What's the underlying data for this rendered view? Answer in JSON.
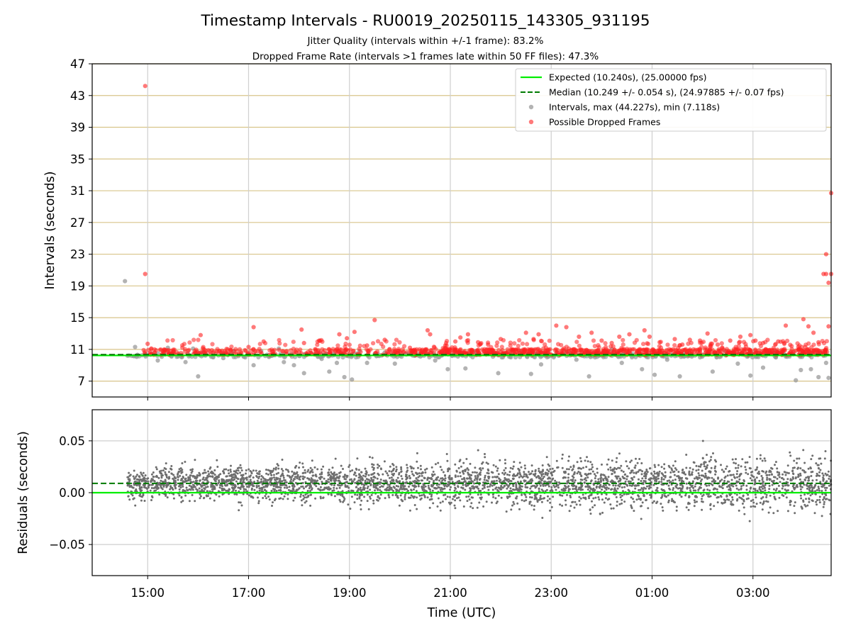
{
  "title": "Timestamp Intervals - RU0019_20250115_143305_931195",
  "subtitle_1": "Jitter Quality (intervals within +/-1 frame): 83.2%",
  "subtitle_2": "Dropped Frame Rate (intervals >1 frames late within 50 FF files): 47.3%",
  "colors": {
    "expected": "#00ee00",
    "median": "#007a00",
    "intervals": "#9a9a9a",
    "dropped": "#ff2020",
    "residuals": "#6e6e6e",
    "hgrid_top": "#d8c48a",
    "grid": "#cfcfcf"
  },
  "chart_data": [
    {
      "type": "scatter",
      "panel": "intervals",
      "ylabel": "Intervals (seconds)",
      "ylim": [
        5.0,
        47.0
      ],
      "yticks": [
        "7",
        "11",
        "15",
        "19",
        "23",
        "27",
        "31",
        "35",
        "39",
        "43",
        "47"
      ],
      "xlim_hours": [
        13.9,
        28.55
      ],
      "xticks": [
        "15:00",
        "17:00",
        "19:00",
        "21:00",
        "23:00",
        "01:00",
        "03:00"
      ],
      "legend_position": "top-right",
      "expected_value": 10.24,
      "median_value": 10.249,
      "series": [
        {
          "name": "Expected (10.240s), (25.00000 fps)",
          "kind": "line",
          "value": 10.24
        },
        {
          "name": "Median (10.249 +/- 0.054 s), (24.97885 +/- 0.07 fps)",
          "kind": "dashed-line",
          "value": 10.249
        },
        {
          "name": "Intervals, max (44.227s), min (7.118s)",
          "kind": "points",
          "max": 44.227,
          "min": 7.118,
          "points": [
            [
              14.55,
              19.6
            ],
            [
              14.6,
              10.2
            ],
            [
              14.75,
              11.3
            ],
            [
              14.8,
              10.3
            ],
            [
              15.0,
              10.3
            ],
            [
              15.2,
              9.6
            ],
            [
              15.4,
              11.2
            ],
            [
              15.6,
              10.1
            ],
            [
              15.75,
              9.4
            ],
            [
              15.9,
              11.1
            ],
            [
              16.0,
              7.6
            ],
            [
              16.1,
              10.6
            ],
            [
              16.3,
              10.0
            ],
            [
              16.5,
              9.9
            ],
            [
              16.7,
              10.8
            ],
            [
              16.9,
              10.1
            ],
            [
              17.1,
              9.0
            ],
            [
              17.25,
              10.8
            ],
            [
              17.4,
              10.1
            ],
            [
              17.6,
              11.1
            ],
            [
              17.7,
              9.4
            ],
            [
              17.9,
              9.0
            ],
            [
              18.1,
              8.0
            ],
            [
              18.25,
              10.4
            ],
            [
              18.45,
              9.8
            ],
            [
              18.6,
              8.2
            ],
            [
              18.75,
              9.3
            ],
            [
              18.9,
              7.5
            ],
            [
              19.05,
              7.2
            ],
            [
              19.2,
              10.8
            ],
            [
              19.35,
              9.3
            ],
            [
              19.5,
              10.4
            ],
            [
              19.7,
              10.6
            ],
            [
              19.9,
              9.2
            ],
            [
              20.1,
              10.4
            ],
            [
              20.3,
              10.2
            ],
            [
              20.5,
              10.8
            ],
            [
              20.7,
              9.6
            ],
            [
              20.95,
              8.5
            ],
            [
              21.15,
              10.1
            ],
            [
              21.3,
              8.6
            ],
            [
              21.5,
              10.8
            ],
            [
              21.75,
              10.4
            ],
            [
              21.95,
              8.0
            ],
            [
              22.2,
              10.0
            ],
            [
              22.4,
              10.8
            ],
            [
              22.6,
              7.9
            ],
            [
              22.8,
              9.1
            ],
            [
              23.05,
              10.0
            ],
            [
              23.3,
              10.8
            ],
            [
              23.5,
              9.7
            ],
            [
              23.75,
              7.6
            ],
            [
              23.95,
              10.2
            ],
            [
              24.2,
              11.0
            ],
            [
              24.4,
              9.3
            ],
            [
              24.6,
              10.0
            ],
            [
              24.8,
              8.5
            ],
            [
              25.05,
              7.8
            ],
            [
              25.3,
              9.7
            ],
            [
              25.55,
              7.6
            ],
            [
              25.75,
              10.3
            ],
            [
              25.95,
              10.0
            ],
            [
              26.2,
              8.2
            ],
            [
              26.45,
              10.8
            ],
            [
              26.7,
              9.2
            ],
            [
              26.95,
              7.7
            ],
            [
              27.2,
              8.7
            ],
            [
              27.45,
              10.8
            ],
            [
              27.65,
              10.1
            ],
            [
              27.85,
              7.1
            ],
            [
              27.95,
              8.4
            ],
            [
              28.15,
              8.5
            ],
            [
              28.3,
              7.5
            ],
            [
              28.45,
              9.3
            ],
            [
              28.5,
              7.4
            ]
          ]
        },
        {
          "name": "Possible Dropped Frames",
          "kind": "points",
          "points": [
            [
              14.95,
              44.2
            ],
            [
              14.95,
              20.5
            ],
            [
              15.0,
              11.7
            ],
            [
              15.05,
              10.6
            ],
            [
              16.05,
              12.8
            ],
            [
              17.0,
              11.3
            ],
            [
              17.1,
              13.8
            ],
            [
              17.3,
              12.0
            ],
            [
              18.05,
              13.5
            ],
            [
              18.1,
              11.8
            ],
            [
              18.4,
              12.1
            ],
            [
              18.6,
              11.0
            ],
            [
              18.8,
              12.9
            ],
            [
              18.95,
              12.4
            ],
            [
              19.1,
              13.2
            ],
            [
              19.35,
              11.5
            ],
            [
              19.5,
              14.7
            ],
            [
              19.7,
              12.2
            ],
            [
              20.2,
              11.2
            ],
            [
              20.55,
              13.4
            ],
            [
              20.6,
              12.9
            ],
            [
              20.9,
              11.5
            ],
            [
              21.1,
              12.0
            ],
            [
              21.2,
              12.5
            ],
            [
              21.35,
              12.9
            ],
            [
              21.55,
              11.9
            ],
            [
              21.75,
              11.6
            ],
            [
              22.0,
              12.3
            ],
            [
              22.5,
              13.1
            ],
            [
              22.65,
              12.3
            ],
            [
              22.75,
              12.9
            ],
            [
              23.1,
              14.0
            ],
            [
              23.3,
              13.8
            ],
            [
              23.55,
              12.6
            ],
            [
              23.8,
              13.1
            ],
            [
              24.0,
              12.1
            ],
            [
              24.2,
              11.8
            ],
            [
              24.35,
              12.6
            ],
            [
              24.55,
              12.9
            ],
            [
              24.85,
              13.4
            ],
            [
              24.95,
              12.6
            ],
            [
              25.15,
              11.9
            ],
            [
              25.45,
              12.3
            ],
            [
              25.6,
              11.6
            ],
            [
              25.75,
              12.2
            ],
            [
              25.95,
              12.1
            ],
            [
              26.1,
              13.0
            ],
            [
              26.3,
              11.6
            ],
            [
              26.55,
              12.1
            ],
            [
              26.75,
              12.6
            ],
            [
              26.95,
              12.8
            ],
            [
              27.05,
              12.1
            ],
            [
              27.2,
              11.8
            ],
            [
              27.5,
              12.0
            ],
            [
              27.65,
              14.0
            ],
            [
              27.9,
              11.3
            ],
            [
              28.0,
              14.8
            ],
            [
              28.1,
              13.9
            ],
            [
              28.2,
              13.1
            ],
            [
              28.3,
              11.9
            ],
            [
              28.4,
              20.5
            ],
            [
              28.45,
              23.0
            ],
            [
              28.45,
              20.5
            ],
            [
              28.5,
              19.4
            ],
            [
              28.5,
              13.9
            ],
            [
              28.55,
              30.7
            ],
            [
              28.55,
              20.5
            ]
          ]
        }
      ]
    },
    {
      "type": "scatter",
      "panel": "residuals",
      "xlabel": "Time (UTC)",
      "ylabel": "Residuals (seconds)",
      "ylim": [
        -0.08,
        0.08
      ],
      "yticks": [
        "−0.05",
        "0.00",
        "0.05"
      ],
      "ytick_values": [
        -0.05,
        0.0,
        0.05
      ],
      "xlim_hours": [
        13.9,
        28.55
      ],
      "xticks": [
        "15:00",
        "17:00",
        "19:00",
        "21:00",
        "23:00",
        "01:00",
        "03:00"
      ],
      "expected_value": 0.0,
      "median_value": 0.009,
      "points_x_range": [
        14.6,
        28.55
      ],
      "spread_start": 0.018,
      "spread_end": 0.032,
      "center": 0.009
    }
  ]
}
